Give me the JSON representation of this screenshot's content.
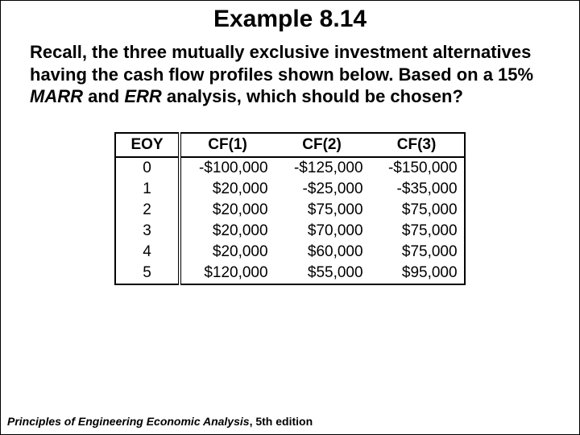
{
  "title": "Example 8.14",
  "paragraph": {
    "part1": "Recall, the three mutually exclusive investment alternatives having the cash flow profiles shown below. Based on a 15% ",
    "marr": "MARR",
    "part2": " and ",
    "err": "ERR",
    "part3": " analysis, which should be chosen?"
  },
  "table": {
    "columns": [
      "EOY",
      "CF(1)",
      "CF(2)",
      "CF(3)"
    ],
    "rows": [
      [
        "0",
        "-$100,000",
        "-$125,000",
        "-$150,000"
      ],
      [
        "1",
        "$20,000",
        "-$25,000",
        "-$35,000"
      ],
      [
        "2",
        "$20,000",
        "$75,000",
        "$75,000"
      ],
      [
        "3",
        "$20,000",
        "$70,000",
        "$75,000"
      ],
      [
        "4",
        "$20,000",
        "$60,000",
        "$75,000"
      ],
      [
        "5",
        "$120,000",
        "$55,000",
        "$95,000"
      ]
    ]
  },
  "footer": {
    "book": "Principles of Engineering Economic Analysis",
    "edition": ", 5th edition"
  }
}
